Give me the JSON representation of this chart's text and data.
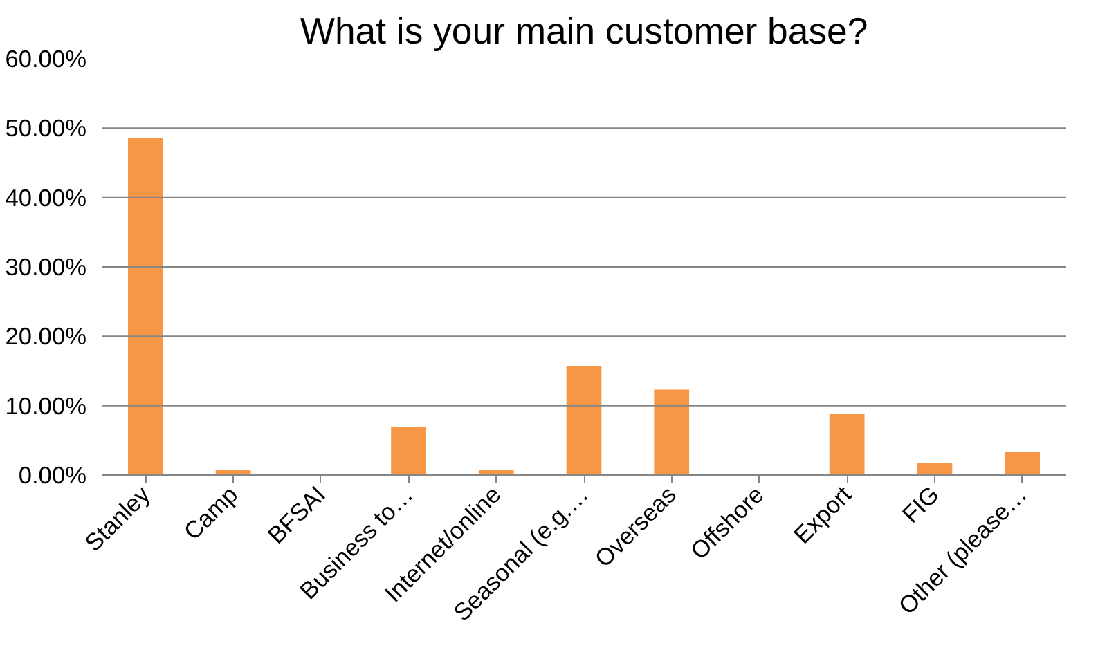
{
  "chart_data": {
    "type": "bar",
    "title": "What is your main customer base?",
    "categories": [
      "Stanley",
      "Camp",
      "BFSAI",
      "Business to…",
      "Internet/online",
      "Seasonal (e.g.…",
      "Overseas",
      "Offshore",
      "Export",
      "FIG",
      "Other (please…"
    ],
    "values": [
      48.6,
      0.8,
      0,
      6.9,
      0.8,
      15.7,
      12.3,
      0,
      8.8,
      1.7,
      3.4
    ],
    "color": "#f79646",
    "ylim": [
      0,
      60
    ],
    "yticks": [
      {
        "value": 0,
        "label": "0.00%"
      },
      {
        "value": 10,
        "label": "10.00%"
      },
      {
        "value": 20,
        "label": "20.00%"
      },
      {
        "value": 30,
        "label": "30.00%"
      },
      {
        "value": 40,
        "label": "40.00%"
      },
      {
        "value": 50,
        "label": "50.00%"
      },
      {
        "value": 60,
        "label": "60.00%"
      }
    ],
    "grid": "y"
  }
}
